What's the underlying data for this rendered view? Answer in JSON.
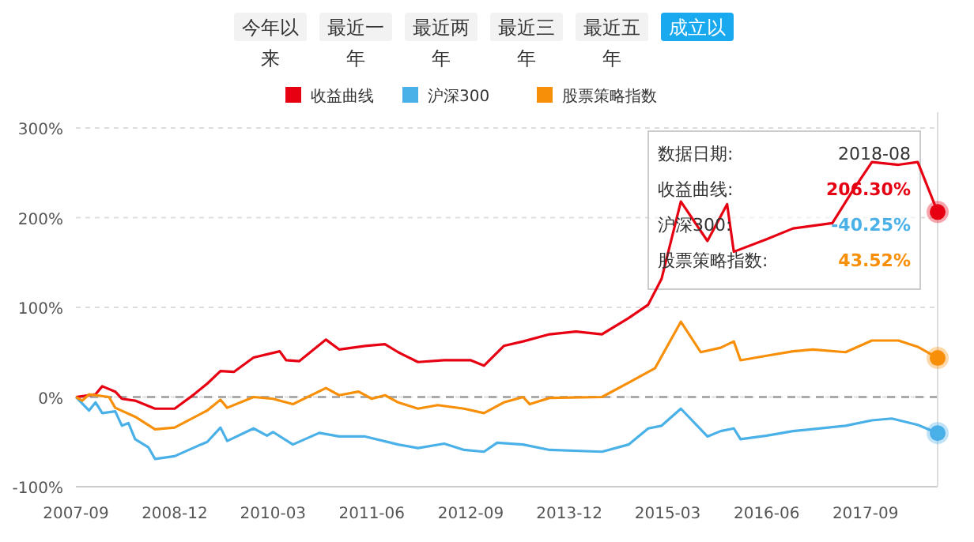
{
  "chart_data": {
    "type": "line",
    "x": [
      "2007-09",
      "2007-12",
      "2008-01",
      "2008-03",
      "2008-04",
      "2008-06",
      "2008-09",
      "2008-12",
      "2009-03",
      "2009-05",
      "2009-07",
      "2009-09",
      "2009-12",
      "2010-04",
      "2010-05",
      "2010-07",
      "2010-11",
      "2011-01",
      "2011-05",
      "2011-08",
      "2011-10",
      "2012-01",
      "2012-05",
      "2012-09",
      "2012-11",
      "2013-02",
      "2013-05",
      "2013-09",
      "2014-01",
      "2014-05",
      "2014-09",
      "2014-12",
      "2015-02",
      "2015-05",
      "2015-09",
      "2015-12",
      "2016-01",
      "2016-06",
      "2016-10",
      "2017-04",
      "2017-07",
      "2017-10",
      "2018-02",
      "2018-05",
      "2018-08"
    ],
    "series": [
      {
        "name": "收益曲线",
        "color": "#e60012",
        "values": [
          0,
          3,
          12,
          6,
          -2,
          -4,
          -13,
          -13,
          3,
          15,
          29,
          28,
          44,
          51,
          41,
          40,
          64,
          53,
          57,
          59,
          50,
          39,
          41,
          41,
          35,
          57,
          62,
          70,
          73,
          70,
          88,
          103,
          132,
          218,
          174,
          215,
          162,
          176,
          188,
          194,
          229,
          262,
          259,
          262,
          206.3
        ]
      },
      {
        "name": "沪深300",
        "color": "#4ab0e8",
        "x": [
          "2007-09",
          "2007-11",
          "2007-12",
          "2008-01",
          "2008-03",
          "2008-04",
          "2008-05",
          "2008-06",
          "2008-08",
          "2008-09",
          "2008-12",
          "2009-04",
          "2009-05",
          "2009-07",
          "2009-08",
          "2009-12",
          "2010-02",
          "2010-03",
          "2010-06",
          "2010-10",
          "2011-01",
          "2011-05",
          "2011-10",
          "2012-01",
          "2012-05",
          "2012-08",
          "2012-11",
          "2013-01",
          "2013-05",
          "2013-09",
          "2014-05",
          "2014-09",
          "2014-12",
          "2015-02",
          "2015-05",
          "2015-09",
          "2015-11",
          "2016-01",
          "2016-02",
          "2016-06",
          "2016-10",
          "2017-06",
          "2017-10",
          "2018-01",
          "2018-05",
          "2018-08"
        ],
        "values": [
          0,
          -15,
          -6,
          -18,
          -16,
          -32,
          -29,
          -47,
          -56,
          -69,
          -66,
          -53,
          -50,
          -34,
          -49,
          -35,
          -43,
          -39,
          -53,
          -40,
          -44,
          -44,
          -53,
          -57,
          -52,
          -59,
          -61,
          -51,
          -53,
          -59,
          -61,
          -53,
          -35,
          -32,
          -13,
          -44,
          -38,
          -35,
          -47,
          -43,
          -38,
          -32,
          -26,
          -24,
          -31,
          -40.25
        ]
      },
      {
        "name": "股票策略指数",
        "color": "#f88f08",
        "x": [
          "2007-09",
          "2007-10",
          "2007-11",
          "2008-02",
          "2008-03",
          "2008-06",
          "2008-09",
          "2008-12",
          "2009-05",
          "2009-07",
          "2009-08",
          "2009-12",
          "2010-03",
          "2010-06",
          "2010-11",
          "2011-01",
          "2011-04",
          "2011-06",
          "2011-08",
          "2011-10",
          "2012-01",
          "2012-04",
          "2012-08",
          "2012-11",
          "2013-02",
          "2013-05",
          "2013-06",
          "2013-09",
          "2014-05",
          "2014-09",
          "2015-01",
          "2015-05",
          "2015-08",
          "2015-11",
          "2016-01",
          "2016-02",
          "2016-06",
          "2016-10",
          "2017-01",
          "2017-06",
          "2017-10",
          "2018-02",
          "2018-05",
          "2018-08"
        ],
        "values": [
          0,
          -4,
          3,
          0,
          -12,
          -22,
          -36,
          -34,
          -15,
          -3,
          -12,
          0,
          -2,
          -8,
          10,
          2,
          6,
          -2,
          2,
          -6,
          -13,
          -9,
          -13,
          -18,
          -6,
          0,
          -8,
          -1,
          0,
          16,
          32,
          84,
          50,
          55,
          62,
          41,
          46,
          51,
          53,
          50,
          63,
          63,
          56,
          43.52
        ]
      }
    ],
    "xlim": [
      "2007-09",
      "2018-08"
    ],
    "xticks": [
      "2007-09",
      "2008-12",
      "2010-03",
      "2011-06",
      "2012-09",
      "2013-12",
      "2015-03",
      "2016-06",
      "2017-09"
    ],
    "ylim": [
      -100,
      300
    ],
    "yticks": [
      {
        "value": -100,
        "label": "-100%"
      },
      {
        "value": 0,
        "label": "0%"
      },
      {
        "value": 100,
        "label": "100%"
      },
      {
        "value": 200,
        "label": "200%"
      },
      {
        "value": 300,
        "label": "300%"
      }
    ],
    "grid": "y",
    "legend": "top",
    "marker": "none",
    "line_style": "solid",
    "ref_lines": [
      {
        "axis": "y",
        "value": 0,
        "color": "#aaaaaa",
        "line_style": "dashed"
      }
    ],
    "annotations": [
      "今年以来",
      "最近一年",
      "最近两年",
      "最近三年",
      "最近五年",
      "成立以",
      "数据日期:",
      "2018-08",
      "收益曲线:",
      "206.30%",
      "沪深300:",
      "-40.25%",
      "股票策略指数:",
      "43.52%"
    ]
  }
}
